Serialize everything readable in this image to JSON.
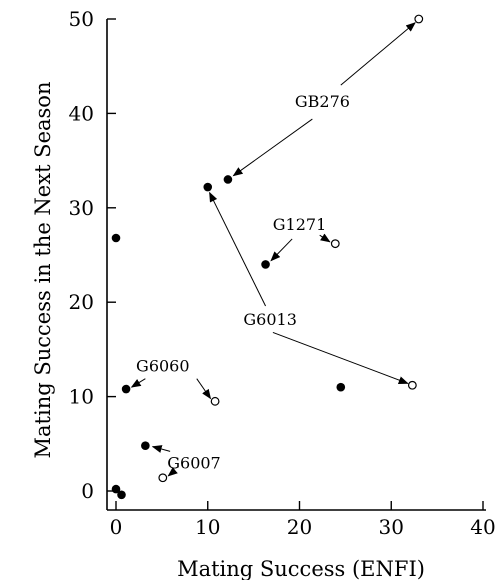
{
  "chart_data": {
    "type": "scatter",
    "title": "",
    "xlabel": "Mating Success (ENFI)",
    "ylabel": "Mating Success in the Next Season",
    "xlim": [
      0,
      40
    ],
    "ylim": [
      0,
      50
    ],
    "xticks": [
      0,
      10,
      20,
      30,
      40
    ],
    "yticks": [
      0,
      10,
      20,
      30,
      40,
      50
    ],
    "grid": false,
    "legend": "none",
    "series": [
      {
        "marker": "filled-circle",
        "points": [
          {
            "x": 0,
            "y": 26.8
          },
          {
            "x": 10,
            "y": 32.2
          },
          {
            "x": 12.2,
            "y": 33
          },
          {
            "x": 16.3,
            "y": 24
          },
          {
            "x": 24.5,
            "y": 11
          },
          {
            "x": 1.1,
            "y": 10.8
          },
          {
            "x": 3.2,
            "y": 4.8
          },
          {
            "x": 0,
            "y": 0.2
          },
          {
            "x": 0.6,
            "y": -0.4
          }
        ]
      },
      {
        "marker": "open-circle",
        "points": [
          {
            "x": 33,
            "y": 50
          },
          {
            "x": 23.9,
            "y": 26.2
          },
          {
            "x": 32.3,
            "y": 11.2
          },
          {
            "x": 10.8,
            "y": 9.5
          },
          {
            "x": 5.1,
            "y": 1.4
          }
        ]
      }
    ],
    "annotations": [
      {
        "text": "GB276",
        "x": 22.5,
        "y": 41.3,
        "arrows": [
          {
            "from": [
              24.5,
              43
            ],
            "to": [
              32.6,
              49.6
            ]
          },
          {
            "from": [
              21.4,
              39.4
            ],
            "to": [
              12.8,
              33.4
            ]
          }
        ]
      },
      {
        "text": "G1271",
        "x": 20,
        "y": 28.3,
        "arrows": [
          {
            "from": [
              22.2,
              27.1
            ],
            "to": [
              23.3,
              26.4
            ]
          },
          {
            "from": [
              19.2,
              26.7
            ],
            "to": [
              16.9,
              24.4
            ]
          }
        ]
      },
      {
        "text": "G6013",
        "x": 16.8,
        "y": 18.2,
        "arrows": [
          {
            "from": [
              16.3,
              19.6
            ],
            "to": [
              10.2,
              31.6
            ]
          },
          {
            "from": [
              17.1,
              16.8
            ],
            "to": [
              31.8,
              11.4
            ]
          }
        ]
      },
      {
        "text": "G6060",
        "x": 5.1,
        "y": 13.3,
        "arrows": [
          {
            "from": [
              3.2,
              11.9
            ],
            "to": [
              1.7,
              11
            ]
          },
          {
            "from": [
              8.8,
              11.9
            ],
            "to": [
              10.3,
              9.8
            ]
          }
        ]
      },
      {
        "text": "G6007",
        "x": 8.5,
        "y": 3,
        "arrows": [
          {
            "from": [
              5.9,
              4.2
            ],
            "to": [
              4,
              4.7
            ]
          },
          {
            "from": [
              6.2,
              2
            ],
            "to": [
              5.7,
              1.6
            ]
          }
        ]
      }
    ]
  }
}
